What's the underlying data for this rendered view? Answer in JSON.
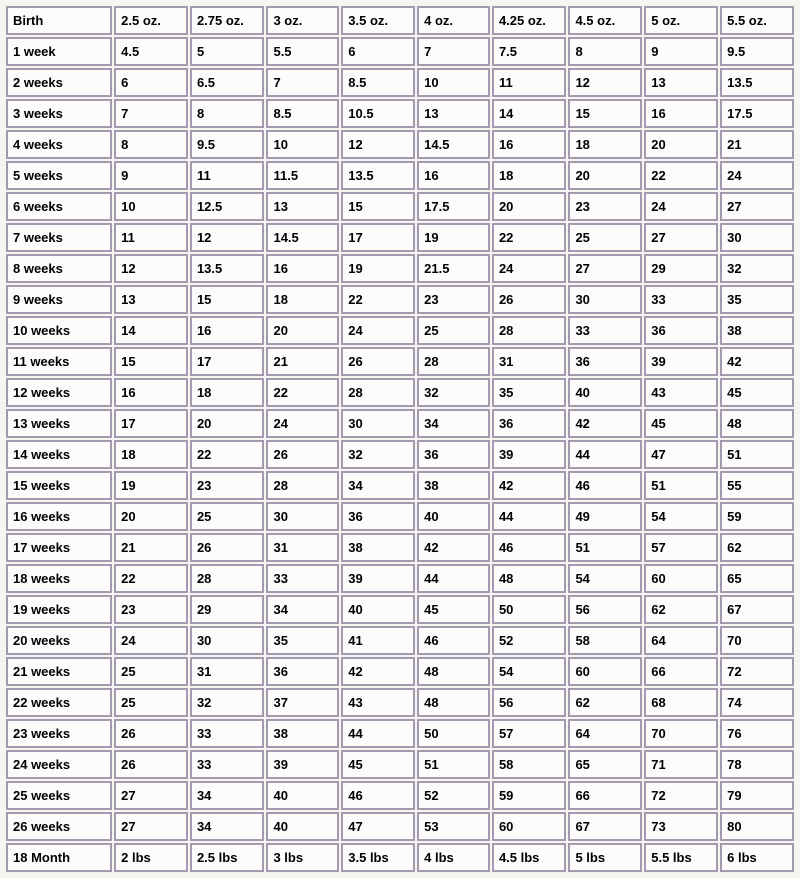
{
  "table": {
    "columns": [
      "Birth",
      "2.5 oz.",
      "2.75 oz.",
      "3 oz.",
      "3.5 oz.",
      "4 oz.",
      "4.25 oz.",
      "4.5 oz.",
      "5 oz.",
      "5.5 oz."
    ],
    "rows": [
      [
        "1 week",
        "4.5",
        "5",
        "5.5",
        "6",
        "7",
        "7.5",
        "8",
        "9",
        "9.5"
      ],
      [
        "2 weeks",
        "6",
        "6.5",
        "7",
        "8.5",
        "10",
        "11",
        "12",
        "13",
        "13.5"
      ],
      [
        "3 weeks",
        "7",
        "8",
        "8.5",
        "10.5",
        "13",
        "14",
        "15",
        "16",
        "17.5"
      ],
      [
        "4 weeks",
        "8",
        "9.5",
        "10",
        "12",
        "14.5",
        "16",
        "18",
        "20",
        "21"
      ],
      [
        "5 weeks",
        "9",
        "11",
        "11.5",
        "13.5",
        "16",
        "18",
        "20",
        "22",
        "24"
      ],
      [
        "6 weeks",
        "10",
        "12.5",
        "13",
        "15",
        "17.5",
        "20",
        "23",
        "24",
        "27"
      ],
      [
        "7 weeks",
        "11",
        "12",
        "14.5",
        "17",
        "19",
        "22",
        "25",
        "27",
        "30"
      ],
      [
        "8 weeks",
        "12",
        "13.5",
        "16",
        "19",
        "21.5",
        "24",
        "27",
        "29",
        "32"
      ],
      [
        "9 weeks",
        "13",
        "15",
        "18",
        "22",
        "23",
        "26",
        "30",
        "33",
        "35"
      ],
      [
        "10 weeks",
        "14",
        "16",
        "20",
        "24",
        "25",
        "28",
        "33",
        "36",
        "38"
      ],
      [
        "11 weeks",
        "15",
        "17",
        "21",
        "26",
        "28",
        "31",
        "36",
        "39",
        "42"
      ],
      [
        "12 weeks",
        "16",
        "18",
        "22",
        "28",
        "32",
        "35",
        "40",
        "43",
        "45"
      ],
      [
        "13 weeks",
        "17",
        "20",
        "24",
        "30",
        "34",
        "36",
        "42",
        "45",
        "48"
      ],
      [
        "14 weeks",
        "18",
        "22",
        "26",
        "32",
        "36",
        "39",
        "44",
        "47",
        "51"
      ],
      [
        "15 weeks",
        "19",
        "23",
        "28",
        "34",
        "38",
        "42",
        "46",
        "51",
        "55"
      ],
      [
        "16 weeks",
        "20",
        "25",
        "30",
        "36",
        "40",
        "44",
        "49",
        "54",
        "59"
      ],
      [
        "17 weeks",
        "21",
        "26",
        "31",
        "38",
        "42",
        "46",
        "51",
        "57",
        "62"
      ],
      [
        "18 weeks",
        "22",
        "28",
        "33",
        "39",
        "44",
        "48",
        "54",
        "60",
        "65"
      ],
      [
        "19 weeks",
        "23",
        "29",
        "34",
        "40",
        "45",
        "50",
        "56",
        "62",
        "67"
      ],
      [
        "20 weeks",
        "24",
        "30",
        "35",
        "41",
        "46",
        "52",
        "58",
        "64",
        "70"
      ],
      [
        "21 weeks",
        "25",
        "31",
        "36",
        "42",
        "48",
        "54",
        "60",
        "66",
        "72"
      ],
      [
        "22 weeks",
        "25",
        "32",
        "37",
        "43",
        "48",
        "56",
        "62",
        "68",
        "74"
      ],
      [
        "23 weeks",
        "26",
        "33",
        "38",
        "44",
        "50",
        "57",
        "64",
        "70",
        "76"
      ],
      [
        "24 weeks",
        "26",
        "33",
        "39",
        "45",
        "51",
        "58",
        "65",
        "71",
        "78"
      ],
      [
        "25 weeks",
        "27",
        "34",
        "40",
        "46",
        "52",
        "59",
        "66",
        "72",
        "79"
      ],
      [
        "26 weeks",
        "27",
        "34",
        "40",
        "47",
        "53",
        "60",
        "67",
        "73",
        "80"
      ],
      [
        "18 Month",
        "2 lbs",
        "2.5 lbs",
        "3 lbs",
        "3.5 lbs",
        "4 lbs",
        "4.5 lbs",
        "5 lbs",
        "5.5 lbs",
        "6 lbs"
      ]
    ],
    "border_color": "#a599b0",
    "background_color": "#f5f5f2",
    "cell_background": "#fcfcfa",
    "font_size_pt": 10,
    "font_weight": "bold",
    "col_count": 10
  }
}
